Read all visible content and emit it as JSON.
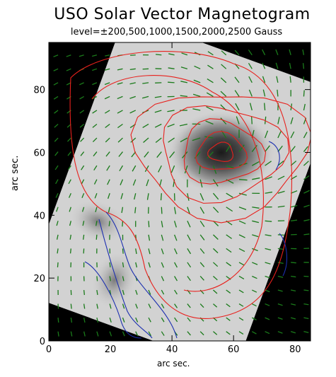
{
  "chart_data": {
    "type": "heatmap",
    "title": "USO Solar Vector Magnetogram",
    "subtitle": "level=±200,500,1000,1500,2000,2500   Gauss",
    "xlabel": "arc sec.",
    "ylabel": "arc sec.",
    "xlim": [
      0,
      85
    ],
    "ylim": [
      0,
      95
    ],
    "xticks": [
      "0",
      "20",
      "40",
      "60",
      "80"
    ],
    "yticks": [
      "0",
      "20",
      "40",
      "60",
      "80"
    ],
    "contour_levels": [
      200,
      500,
      1000,
      1500,
      2000,
      2500
    ],
    "units": "Gauss",
    "positive_contour_color": "#e8201c",
    "negative_contour_color": "#1c2fb0",
    "vector_color": "#1a7a1a",
    "sunspot_center": [
      56,
      60
    ]
  }
}
